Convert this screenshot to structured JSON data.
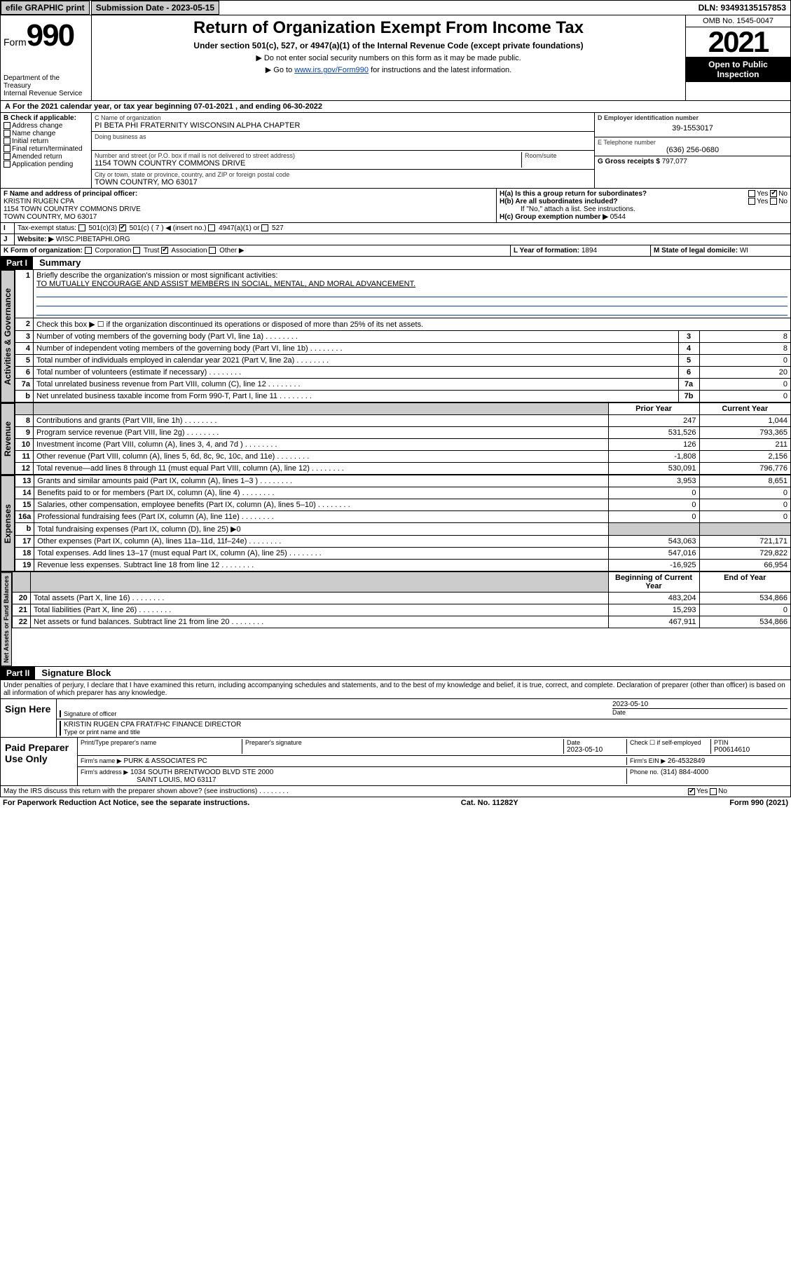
{
  "topbar": {
    "efile": "efile GRAPHIC print",
    "submission": "Submission Date - 2023-05-15",
    "dln": "DLN: 93493135157853"
  },
  "header": {
    "form_label": "Form",
    "form_no": "990",
    "dept": "Department of the Treasury",
    "irs": "Internal Revenue Service",
    "title": "Return of Organization Exempt From Income Tax",
    "subtitle": "Under section 501(c), 527, or 4947(a)(1) of the Internal Revenue Code (except private foundations)",
    "instr1": "Do not enter social security numbers on this form as it may be made public.",
    "instr2_pre": "Go to ",
    "instr2_link": "www.irs.gov/Form990",
    "instr2_post": " for instructions and the latest information.",
    "omb": "OMB No. 1545-0047",
    "year": "2021",
    "inspect": "Open to Public Inspection"
  },
  "band_a": "For the 2021 calendar year, or tax year beginning 07-01-2021   , and ending 06-30-2022",
  "section_b": {
    "b_label": "B Check if applicable:",
    "b_opts": [
      "Address change",
      "Name change",
      "Initial return",
      "Final return/terminated",
      "Amended return",
      "Application pending"
    ],
    "c_name_lbl": "C Name of organization",
    "c_name": "PI BETA PHI FRATERNITY WISCONSIN ALPHA CHAPTER",
    "dba_lbl": "Doing business as",
    "addr_lbl": "Number and street (or P.O. box if mail is not delivered to street address)",
    "addr": "1154 TOWN COUNTRY COMMONS DRIVE",
    "room_lbl": "Room/suite",
    "city_lbl": "City or town, state or province, country, and ZIP or foreign postal code",
    "city": "TOWN COUNTRY, MO  63017",
    "d_lbl": "D Employer identification number",
    "d_val": "39-1553017",
    "e_lbl": "E Telephone number",
    "e_val": "(636) 256-0680",
    "g_lbl": "G Gross receipts $",
    "g_val": "797,077"
  },
  "section_f": {
    "f_lbl": "F  Name and address of principal officer:",
    "f_name": "KRISTIN RUGEN CPA",
    "f_addr1": "1154 TOWN COUNTRY COMMONS DRIVE",
    "f_addr2": "TOWN COUNTRY, MO  63017",
    "ha_lbl": "H(a)  Is this a group return for subordinates?",
    "hb_lbl": "H(b)  Are all subordinates included?",
    "hb_note": "If \"No,\" attach a list. See instructions.",
    "hc_lbl": "H(c)  Group exemption number ▶",
    "hc_val": "0544",
    "yes": "Yes",
    "no": "No"
  },
  "section_i": {
    "lbl": "Tax-exempt status:",
    "opts": [
      "501(c)(3)",
      "501(c) ( 7 ) ◀ (insert no.)",
      "4947(a)(1) or",
      "527"
    ]
  },
  "section_j": {
    "lbl": "Website: ▶",
    "val": "WISC.PIBETAPHI.ORG"
  },
  "section_k": {
    "lbl": "K Form of organization:",
    "opts": [
      "Corporation",
      "Trust",
      "Association",
      "Other ▶"
    ],
    "l_lbl": "L Year of formation:",
    "l_val": "1894",
    "m_lbl": "M State of legal domicile:",
    "m_val": "WI"
  },
  "part1": {
    "hdr": "Part I",
    "title": "Summary",
    "q1_lbl": "1",
    "q1": "Briefly describe the organization's mission or most significant activities:",
    "q1_ans": "TO MUTUALLY ENCOURAGE AND ASSIST MEMBERS IN SOCIAL, MENTAL, AND MORAL ADVANCEMENT.",
    "q2_lbl": "2",
    "q2": "Check this box ▶ ☐  if the organization discontinued its operations or disposed of more than 25% of its net assets.",
    "rows_gov": [
      {
        "n": "3",
        "t": "Number of voting members of the governing body (Part VI, line 1a)",
        "b": "3",
        "v": "8"
      },
      {
        "n": "4",
        "t": "Number of independent voting members of the governing body (Part VI, line 1b)",
        "b": "4",
        "v": "8"
      },
      {
        "n": "5",
        "t": "Total number of individuals employed in calendar year 2021 (Part V, line 2a)",
        "b": "5",
        "v": "0"
      },
      {
        "n": "6",
        "t": "Total number of volunteers (estimate if necessary)",
        "b": "6",
        "v": "20"
      },
      {
        "n": "7a",
        "t": "Total unrelated business revenue from Part VIII, column (C), line 12",
        "b": "7a",
        "v": "0"
      },
      {
        "n": "b",
        "t": "Net unrelated business taxable income from Form 990-T, Part I, line 11",
        "b": "7b",
        "v": "0"
      }
    ],
    "col_prior": "Prior Year",
    "col_curr": "Current Year",
    "rows_rev": [
      {
        "n": "8",
        "t": "Contributions and grants (Part VIII, line 1h)",
        "p": "247",
        "c": "1,044"
      },
      {
        "n": "9",
        "t": "Program service revenue (Part VIII, line 2g)",
        "p": "531,526",
        "c": "793,365"
      },
      {
        "n": "10",
        "t": "Investment income (Part VIII, column (A), lines 3, 4, and 7d )",
        "p": "126",
        "c": "211"
      },
      {
        "n": "11",
        "t": "Other revenue (Part VIII, column (A), lines 5, 6d, 8c, 9c, 10c, and 11e)",
        "p": "-1,808",
        "c": "2,156"
      },
      {
        "n": "12",
        "t": "Total revenue—add lines 8 through 11 (must equal Part VIII, column (A), line 12)",
        "p": "530,091",
        "c": "796,776"
      }
    ],
    "rows_exp": [
      {
        "n": "13",
        "t": "Grants and similar amounts paid (Part IX, column (A), lines 1–3 )",
        "p": "3,953",
        "c": "8,651"
      },
      {
        "n": "14",
        "t": "Benefits paid to or for members (Part IX, column (A), line 4)",
        "p": "0",
        "c": "0"
      },
      {
        "n": "15",
        "t": "Salaries, other compensation, employee benefits (Part IX, column (A), lines 5–10)",
        "p": "0",
        "c": "0"
      },
      {
        "n": "16a",
        "t": "Professional fundraising fees (Part IX, column (A), line 11e)",
        "p": "0",
        "c": "0"
      },
      {
        "n": "b",
        "t": "Total fundraising expenses (Part IX, column (D), line 25) ▶0",
        "p": "",
        "c": "",
        "shade": true
      },
      {
        "n": "17",
        "t": "Other expenses (Part IX, column (A), lines 11a–11d, 11f–24e)",
        "p": "543,063",
        "c": "721,171"
      },
      {
        "n": "18",
        "t": "Total expenses. Add lines 13–17 (must equal Part IX, column (A), line 25)",
        "p": "547,016",
        "c": "729,822"
      },
      {
        "n": "19",
        "t": "Revenue less expenses. Subtract line 18 from line 12",
        "p": "-16,925",
        "c": "66,954"
      }
    ],
    "col_beg": "Beginning of Current Year",
    "col_end": "End of Year",
    "rows_net": [
      {
        "n": "20",
        "t": "Total assets (Part X, line 16)",
        "p": "483,204",
        "c": "534,866"
      },
      {
        "n": "21",
        "t": "Total liabilities (Part X, line 26)",
        "p": "15,293",
        "c": "0"
      },
      {
        "n": "22",
        "t": "Net assets or fund balances. Subtract line 21 from line 20",
        "p": "467,911",
        "c": "534,866"
      }
    ],
    "tab_gov": "Activities & Governance",
    "tab_rev": "Revenue",
    "tab_exp": "Expenses",
    "tab_net": "Net Assets or Fund Balances"
  },
  "part2": {
    "hdr": "Part II",
    "title": "Signature Block",
    "decl": "Under penalties of perjury, I declare that I have examined this return, including accompanying schedules and statements, and to the best of my knowledge and belief, it is true, correct, and complete. Declaration of preparer (other than officer) is based on all information of which preparer has any knowledge.",
    "sign_here": "Sign Here",
    "sig_officer": "Signature of officer",
    "sig_date": "Date",
    "sig_date_val": "2023-05-10",
    "sig_name": "KRISTIN RUGEN CPA  FRAT/FHC FINANCE DIRECTOR",
    "sig_name_lbl": "Type or print name and title",
    "paid": "Paid Preparer Use Only",
    "prep_name_lbl": "Print/Type preparer's name",
    "prep_sig_lbl": "Preparer's signature",
    "prep_date_lbl": "Date",
    "prep_date": "2023-05-10",
    "prep_self": "Check ☐ if self-employed",
    "ptin_lbl": "PTIN",
    "ptin": "P00614610",
    "firm_name_lbl": "Firm's name   ▶",
    "firm_name": "PURK & ASSOCIATES PC",
    "firm_ein_lbl": "Firm's EIN ▶",
    "firm_ein": "26-4532849",
    "firm_addr_lbl": "Firm's address ▶",
    "firm_addr1": "1034 SOUTH BRENTWOOD BLVD STE 2000",
    "firm_addr2": "SAINT LOUIS, MO  63117",
    "phone_lbl": "Phone no.",
    "phone": "(314) 884-4000",
    "discuss": "May the IRS discuss this return with the preparer shown above? (see instructions)",
    "yes": "Yes",
    "no": "No"
  },
  "footer": {
    "left": "For Paperwork Reduction Act Notice, see the separate instructions.",
    "mid": "Cat. No. 11282Y",
    "right": "Form 990 (2021)"
  }
}
